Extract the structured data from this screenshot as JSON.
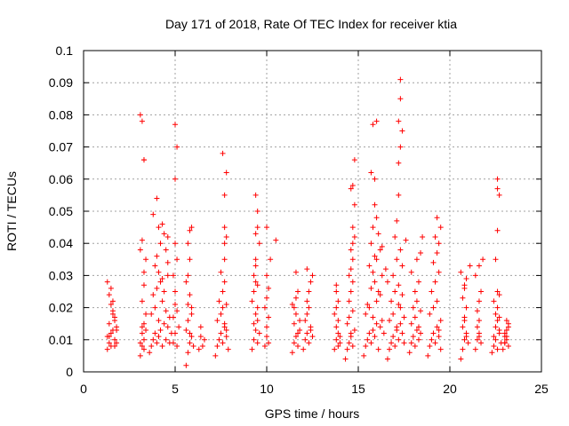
{
  "chart_data": {
    "type": "scatter",
    "title": "Day 171 of 2018, Rate Of TEC Index for receiver ktia",
    "xlabel": "GPS time / hours",
    "ylabel": "ROTI / TECUs",
    "xlim": [
      0,
      25
    ],
    "ylim": [
      0,
      0.1
    ],
    "xticks": [
      0,
      5,
      10,
      15,
      20,
      25
    ],
    "xtick_labels": [
      "0",
      "5",
      "10",
      "15",
      "20",
      "25"
    ],
    "yticks": [
      0,
      0.01,
      0.02,
      0.03,
      0.04,
      0.05,
      0.06,
      0.07,
      0.08,
      0.09,
      0.1
    ],
    "ytick_labels": [
      "0",
      "0.01",
      "0.02",
      "0.03",
      "0.04",
      "0.05",
      "0.06",
      "0.07",
      "0.08",
      "0.09",
      "0.1"
    ],
    "grid": true,
    "marker": "plus",
    "series": [
      {
        "name": "ROTI",
        "color": "#ff0000",
        "x": [
          1.3,
          1.3,
          1.4,
          1.4,
          1.5,
          1.5,
          1.6,
          1.6,
          1.7,
          1.7,
          1.8,
          1.8,
          1.4,
          1.5,
          1.6,
          1.7,
          1.3,
          1.5,
          1.6,
          1.8,
          1.4,
          1.7,
          3.1,
          3.1,
          3.2,
          3.2,
          3.3,
          3.3,
          3.4,
          3.4,
          3.2,
          3.3,
          3.3,
          3.4,
          3.1,
          3.2,
          3.3,
          3.3,
          3.2,
          3.1,
          3.3,
          3.2,
          3.6,
          3.7,
          3.8,
          3.9,
          4.0,
          4.1,
          4.2,
          4.3,
          4.4,
          4.5,
          4.6,
          4.7,
          4.8,
          3.7,
          3.9,
          4.1,
          4.3,
          4.5,
          4.7,
          3.8,
          4.0,
          4.2,
          4.4,
          4.6,
          3.9,
          4.1,
          4.3,
          4.6,
          4.0,
          4.2,
          4.5,
          4.1,
          4.4,
          3.8,
          4.3,
          4.6,
          4.0,
          4.9,
          5.0,
          5.1,
          5.2,
          4.9,
          5.0,
          5.1,
          5.0,
          4.9,
          5.1,
          5.0,
          5.0,
          5.1,
          5.0,
          5.6,
          5.7,
          5.8,
          5.9,
          6.0,
          5.6,
          5.7,
          5.8,
          5.9,
          5.7,
          5.8,
          5.9,
          5.6,
          5.7,
          5.8,
          5.7,
          5.9,
          5.8,
          6.3,
          6.4,
          6.6,
          6.4,
          6.5,
          7.2,
          7.3,
          7.4,
          7.5,
          7.6,
          7.7,
          7.8,
          7.9,
          7.3,
          7.5,
          7.6,
          7.7,
          7.8,
          7.4,
          7.6,
          7.7,
          7.8,
          7.5,
          7.7,
          7.7,
          7.7,
          7.8,
          7.7,
          7.8,
          7.6,
          9.2,
          9.3,
          9.4,
          9.5,
          9.6,
          9.3,
          9.4,
          9.5,
          9.2,
          9.3,
          9.4,
          9.5,
          9.3,
          9.4,
          9.5,
          9.4,
          9.4,
          9.5,
          9.6,
          9.5,
          9.4,
          9.9,
          10.0,
          10.1,
          10.0,
          10.1,
          9.9,
          10.0,
          10.1,
          10.0,
          10.2,
          10.0,
          10.5,
          11.4,
          11.5,
          11.6,
          11.7,
          11.8,
          11.5,
          11.6,
          11.7,
          11.8,
          11.5,
          11.6,
          11.7,
          11.6,
          11.4,
          12.0,
          12.1,
          12.2,
          12.3,
          12.4,
          12.5,
          12.1,
          12.2,
          12.3,
          12.4,
          12.2,
          12.3,
          12.4,
          12.5,
          12.2,
          13.7,
          13.8,
          13.9,
          14.0,
          13.8,
          13.9,
          14.0,
          13.7,
          13.8,
          13.9,
          13.8,
          13.9,
          13.8,
          14.3,
          14.4,
          14.5,
          14.6,
          14.7,
          14.8,
          14.4,
          14.5,
          14.6,
          14.7,
          14.5,
          14.6,
          14.7,
          14.5,
          14.6,
          14.7,
          14.6,
          14.7,
          14.8,
          14.7,
          14.8,
          14.7,
          14.8,
          14.6,
          15.3,
          15.4,
          15.5,
          15.6,
          15.7,
          15.8,
          15.9,
          16.0,
          16.1,
          16.2,
          16.3,
          16.4,
          15.4,
          15.6,
          15.8,
          16.0,
          16.2,
          15.5,
          15.7,
          15.9,
          16.1,
          16.3,
          15.6,
          15.8,
          16.0,
          16.2,
          15.7,
          15.9,
          16.1,
          15.8,
          16.0,
          15.9,
          15.9,
          15.7,
          15.8,
          16.0,
          16.3,
          16.5,
          16.6,
          16.7,
          16.8,
          16.9,
          17.0,
          17.1,
          17.2,
          17.3,
          17.4,
          17.5,
          16.7,
          16.9,
          17.1,
          17.3,
          17.5,
          16.8,
          17.0,
          17.2,
          17.4,
          16.6,
          16.9,
          17.2,
          17.4,
          17.1,
          17.3,
          17.0,
          17.1,
          17.2,
          17.2,
          17.3,
          17.4,
          17.2,
          17.3,
          17.3,
          17.6,
          17.8,
          17.9,
          18.0,
          18.1,
          18.2,
          18.3,
          18.4,
          17.9,
          18.1,
          18.3,
          18.0,
          18.2,
          18.4,
          18.1,
          18.3,
          17.9,
          18.2,
          18.4,
          18.5,
          18.8,
          18.9,
          19.0,
          19.1,
          19.2,
          19.3,
          19.4,
          19.5,
          18.9,
          19.1,
          19.3,
          19.0,
          19.2,
          19.4,
          19.1,
          19.3,
          19.4,
          19.2,
          19.5,
          19.3,
          19.4,
          19.5,
          20.6,
          20.7,
          20.8,
          20.9,
          21.0,
          20.7,
          20.8,
          20.9,
          20.7,
          20.8,
          20.9,
          20.6,
          20.8,
          20.9,
          20.8,
          21.1,
          21.4,
          21.5,
          21.6,
          21.7,
          21.5,
          21.6,
          21.5,
          21.6,
          21.7,
          21.4,
          21.6,
          21.8,
          21.6,
          22.3,
          22.4,
          22.5,
          22.6,
          22.7,
          22.8,
          22.4,
          22.5,
          22.6,
          22.7,
          22.5,
          22.6,
          22.7,
          22.4,
          22.6,
          22.7,
          22.5,
          22.6,
          22.7,
          22.6,
          22.6,
          22.9,
          23.0,
          23.1,
          23.2,
          23.0,
          23.1,
          23.2,
          23.0,
          23.1,
          23.2,
          23.0,
          23.1
        ],
        "y": [
          0.007,
          0.011,
          0.009,
          0.015,
          0.012,
          0.008,
          0.019,
          0.013,
          0.01,
          0.016,
          0.014,
          0.009,
          0.024,
          0.021,
          0.018,
          0.017,
          0.028,
          0.026,
          0.022,
          0.013,
          0.011,
          0.008,
          0.005,
          0.009,
          0.008,
          0.012,
          0.01,
          0.015,
          0.013,
          0.018,
          0.022,
          0.027,
          0.031,
          0.035,
          0.038,
          0.041,
          0.066,
          0.066,
          0.078,
          0.08,
          0.007,
          0.014,
          0.006,
          0.008,
          0.01,
          0.012,
          0.009,
          0.011,
          0.013,
          0.008,
          0.015,
          0.01,
          0.014,
          0.009,
          0.012,
          0.018,
          0.02,
          0.016,
          0.022,
          0.019,
          0.017,
          0.024,
          0.026,
          0.028,
          0.025,
          0.03,
          0.033,
          0.031,
          0.029,
          0.034,
          0.036,
          0.04,
          0.038,
          0.045,
          0.043,
          0.049,
          0.046,
          0.042,
          0.054,
          0.009,
          0.012,
          0.008,
          0.014,
          0.017,
          0.021,
          0.019,
          0.025,
          0.03,
          0.035,
          0.04,
          0.06,
          0.07,
          0.077,
          0.002,
          0.006,
          0.009,
          0.011,
          0.008,
          0.013,
          0.016,
          0.012,
          0.018,
          0.021,
          0.024,
          0.02,
          0.028,
          0.03,
          0.035,
          0.04,
          0.045,
          0.044,
          0.007,
          0.011,
          0.01,
          0.014,
          0.008,
          0.005,
          0.008,
          0.01,
          0.012,
          0.009,
          0.014,
          0.011,
          0.007,
          0.016,
          0.018,
          0.02,
          0.015,
          0.013,
          0.022,
          0.025,
          0.028,
          0.021,
          0.031,
          0.035,
          0.04,
          0.045,
          0.042,
          0.055,
          0.062,
          0.068,
          0.007,
          0.01,
          0.013,
          0.009,
          0.012,
          0.015,
          0.018,
          0.02,
          0.022,
          0.025,
          0.028,
          0.016,
          0.03,
          0.033,
          0.027,
          0.035,
          0.043,
          0.045,
          0.04,
          0.05,
          0.055,
          0.008,
          0.011,
          0.009,
          0.014,
          0.017,
          0.02,
          0.023,
          0.026,
          0.03,
          0.035,
          0.045,
          0.041,
          0.006,
          0.009,
          0.011,
          0.008,
          0.013,
          0.015,
          0.018,
          0.012,
          0.016,
          0.02,
          0.023,
          0.025,
          0.031,
          0.021,
          0.007,
          0.01,
          0.012,
          0.009,
          0.014,
          0.011,
          0.016,
          0.018,
          0.02,
          0.013,
          0.022,
          0.025,
          0.028,
          0.03,
          0.032,
          0.007,
          0.01,
          0.012,
          0.009,
          0.014,
          0.016,
          0.011,
          0.018,
          0.02,
          0.022,
          0.025,
          0.008,
          0.027,
          0.004,
          0.007,
          0.009,
          0.011,
          0.008,
          0.013,
          0.015,
          0.017,
          0.012,
          0.019,
          0.022,
          0.025,
          0.028,
          0.03,
          0.032,
          0.035,
          0.038,
          0.04,
          0.042,
          0.045,
          0.052,
          0.058,
          0.066,
          0.057,
          0.005,
          0.008,
          0.01,
          0.012,
          0.009,
          0.013,
          0.011,
          0.015,
          0.007,
          0.014,
          0.016,
          0.012,
          0.018,
          0.02,
          0.017,
          0.022,
          0.024,
          0.021,
          0.026,
          0.028,
          0.025,
          0.03,
          0.033,
          0.031,
          0.035,
          0.038,
          0.04,
          0.036,
          0.043,
          0.045,
          0.048,
          0.052,
          0.06,
          0.062,
          0.077,
          0.078,
          0.039,
          0.032,
          0.004,
          0.007,
          0.009,
          0.011,
          0.008,
          0.013,
          0.01,
          0.015,
          0.012,
          0.009,
          0.016,
          0.018,
          0.014,
          0.02,
          0.017,
          0.022,
          0.025,
          0.021,
          0.024,
          0.028,
          0.03,
          0.027,
          0.033,
          0.035,
          0.038,
          0.042,
          0.047,
          0.055,
          0.065,
          0.07,
          0.075,
          0.078,
          0.085,
          0.091,
          0.041,
          0.006,
          0.009,
          0.011,
          0.008,
          0.013,
          0.01,
          0.012,
          0.015,
          0.017,
          0.014,
          0.02,
          0.022,
          0.019,
          0.025,
          0.028,
          0.031,
          0.035,
          0.037,
          0.042,
          0.005,
          0.008,
          0.01,
          0.012,
          0.009,
          0.014,
          0.011,
          0.016,
          0.018,
          0.02,
          0.022,
          0.025,
          0.028,
          0.031,
          0.034,
          0.037,
          0.04,
          0.042,
          0.045,
          0.048,
          0.013,
          0.007,
          0.004,
          0.007,
          0.01,
          0.012,
          0.009,
          0.014,
          0.017,
          0.02,
          0.023,
          0.026,
          0.029,
          0.031,
          0.016,
          0.011,
          0.027,
          0.033,
          0.007,
          0.01,
          0.012,
          0.009,
          0.014,
          0.016,
          0.019,
          0.022,
          0.025,
          0.03,
          0.033,
          0.035,
          0.011,
          0.006,
          0.008,
          0.01,
          0.007,
          0.012,
          0.009,
          0.011,
          0.014,
          0.016,
          0.013,
          0.018,
          0.02,
          0.017,
          0.022,
          0.025,
          0.024,
          0.035,
          0.044,
          0.055,
          0.057,
          0.06,
          0.007,
          0.009,
          0.011,
          0.008,
          0.012,
          0.01,
          0.014,
          0.009,
          0.013,
          0.015,
          0.011,
          0.016
        ]
      }
    ]
  }
}
